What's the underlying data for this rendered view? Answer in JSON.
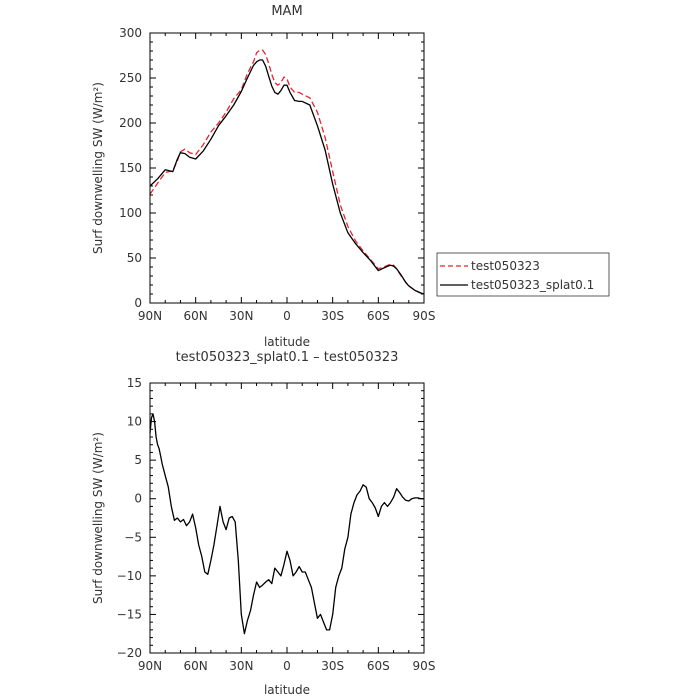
{
  "chart_data": [
    {
      "type": "line",
      "title": "MAM",
      "xlabel": "latitude",
      "ylabel": "Surf downwelling SW (W/m²)",
      "xlim": [
        90,
        -90
      ],
      "ylim": [
        0,
        300
      ],
      "xticks": [
        90,
        60,
        30,
        0,
        -30,
        -60,
        -90
      ],
      "xtick_labels": [
        "90N",
        "60N",
        "30N",
        "0",
        "30S",
        "60S",
        "90S"
      ],
      "yticks": [
        0,
        50,
        100,
        150,
        200,
        250,
        300
      ],
      "ytick_labels": [
        "0",
        "50",
        "100",
        "150",
        "200",
        "250",
        "300"
      ],
      "legend_position": "right",
      "series": [
        {
          "name": "test050323",
          "color": "#e8242e",
          "dash": "dashed",
          "x": [
            90,
            85,
            80,
            75,
            72,
            70,
            67,
            64,
            60,
            55,
            50,
            45,
            40,
            35,
            30,
            26,
            22,
            20,
            18,
            16,
            14,
            12,
            10,
            8,
            6,
            4,
            2,
            0,
            -2,
            -5,
            -8,
            -10,
            -15,
            -20,
            -25,
            -30,
            -35,
            -40,
            -45,
            -50,
            -55,
            -60,
            -65,
            -68,
            -70,
            -72,
            -75,
            -78,
            -80,
            -84,
            -88,
            -90
          ],
          "y": [
            121,
            133,
            145,
            147,
            158,
            168,
            171,
            167,
            165,
            176,
            190,
            200,
            212,
            227,
            237,
            255,
            268,
            278,
            281,
            281,
            276,
            266,
            254,
            245,
            242,
            245,
            251,
            249,
            240,
            234,
            234,
            232,
            228,
            212,
            184,
            146,
            109,
            85,
            69,
            58,
            48,
            38,
            41,
            43,
            42,
            38,
            30,
            23,
            19,
            14,
            11,
            10
          ]
        },
        {
          "name": "test050323_splat0.1",
          "color": "#000000",
          "dash": "solid",
          "x": [
            90,
            85,
            80,
            75,
            72,
            70,
            67,
            64,
            60,
            55,
            50,
            45,
            40,
            35,
            30,
            26,
            22,
            20,
            18,
            16,
            14,
            12,
            10,
            8,
            6,
            4,
            2,
            0,
            -2,
            -5,
            -8,
            -10,
            -15,
            -20,
            -25,
            -30,
            -35,
            -40,
            -45,
            -50,
            -55,
            -60,
            -65,
            -68,
            -70,
            -72,
            -75,
            -78,
            -80,
            -84,
            -88,
            -90
          ],
          "y": [
            130,
            138,
            148,
            146,
            160,
            167,
            166,
            162,
            160,
            169,
            182,
            197,
            208,
            220,
            235,
            250,
            264,
            268,
            270,
            270,
            263,
            252,
            241,
            234,
            232,
            236,
            242,
            242,
            234,
            225,
            224,
            224,
            220,
            197,
            170,
            132,
            100,
            78,
            66,
            56,
            47,
            36,
            40,
            42,
            41,
            38,
            31,
            23,
            19,
            14,
            11,
            10
          ]
        }
      ]
    },
    {
      "type": "line",
      "title": "test050323_splat0.1 – test050323",
      "xlabel": "latitude",
      "ylabel": "Surf downwelling SW (W/m²)",
      "xlim": [
        90,
        -90
      ],
      "ylim": [
        -20,
        15
      ],
      "xticks": [
        90,
        60,
        30,
        0,
        -30,
        -60,
        -90
      ],
      "xtick_labels": [
        "90N",
        "60N",
        "30N",
        "0",
        "30S",
        "60S",
        "90S"
      ],
      "yticks": [
        -20,
        -15,
        -10,
        -5,
        0,
        5,
        10,
        15
      ],
      "ytick_labels": [
        "−20",
        "−15",
        "−10",
        "−5",
        "0",
        "5",
        "10",
        "15"
      ],
      "series": [
        {
          "color": "#000000",
          "dash": "solid",
          "x": [
            90,
            89,
            88,
            87,
            86,
            85,
            84,
            83,
            82,
            80,
            78,
            76,
            74,
            72,
            70,
            68,
            66,
            64,
            62,
            60,
            58,
            56,
            54,
            52,
            50,
            48,
            46,
            44,
            42,
            40,
            38,
            36,
            34,
            32,
            30,
            28,
            26,
            24,
            22,
            20,
            18,
            16,
            14,
            12,
            10,
            8,
            6,
            4,
            2,
            0,
            -2,
            -4,
            -6,
            -8,
            -10,
            -12,
            -14,
            -16,
            -18,
            -20,
            -22,
            -24,
            -26,
            -28,
            -30,
            -32,
            -34,
            -36,
            -38,
            -40,
            -42,
            -44,
            -46,
            -48,
            -50,
            -52,
            -54,
            -56,
            -58,
            -60,
            -62,
            -64,
            -66,
            -68,
            -70,
            -72,
            -74,
            -76,
            -78,
            -80,
            -82,
            -84,
            -86,
            -88,
            -90
          ],
          "y": [
            8.5,
            10.5,
            11,
            10,
            8,
            7,
            6.5,
            5.5,
            4.5,
            3,
            1.5,
            -1,
            -2.8,
            -2.5,
            -3,
            -2.7,
            -3.5,
            -3,
            -2,
            -3.8,
            -6,
            -7.5,
            -9.5,
            -9.8,
            -8,
            -6,
            -3.5,
            -1,
            -3,
            -4,
            -2.5,
            -2.3,
            -3,
            -8,
            -15,
            -17.5,
            -15.8,
            -14.5,
            -12.5,
            -10.8,
            -11.5,
            -11.2,
            -10.8,
            -10.5,
            -11,
            -9,
            -9.5,
            -10,
            -8.5,
            -6.8,
            -8,
            -10,
            -9.5,
            -8.8,
            -9.5,
            -9.5,
            -10.5,
            -11.5,
            -13.5,
            -15.5,
            -15,
            -16,
            -17,
            -17,
            -15,
            -11.5,
            -10,
            -9,
            -6.5,
            -5,
            -2,
            -0.5,
            0.5,
            1,
            1.8,
            1.5,
            0,
            -0.5,
            -1.2,
            -2.3,
            -1,
            -0.5,
            -1,
            -0.5,
            0.2,
            1.3,
            0.8,
            0.2,
            -0.2,
            -0.3,
            0,
            0.1,
            0.1,
            0,
            0
          ]
        }
      ]
    }
  ]
}
